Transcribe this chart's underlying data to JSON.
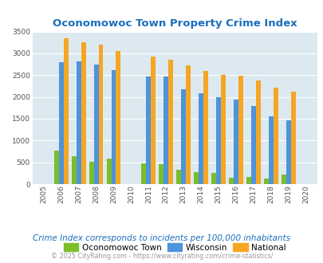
{
  "title": "Oconomowoc Town Property Crime Index",
  "years": [
    2005,
    2006,
    2007,
    2008,
    2009,
    2010,
    2011,
    2012,
    2013,
    2014,
    2015,
    2016,
    2017,
    2018,
    2019,
    2020
  ],
  "oconomowoc": [
    0,
    775,
    640,
    505,
    590,
    0,
    475,
    450,
    330,
    270,
    250,
    155,
    165,
    120,
    220,
    0
  ],
  "wisconsin": [
    0,
    2800,
    2820,
    2750,
    2610,
    0,
    2460,
    2475,
    2175,
    2090,
    1985,
    1940,
    1800,
    1555,
    1470,
    0
  ],
  "national": [
    0,
    3350,
    3255,
    3200,
    3045,
    0,
    2920,
    2860,
    2730,
    2600,
    2505,
    2480,
    2380,
    2210,
    2120,
    0
  ],
  "ylim": [
    0,
    3500
  ],
  "yticks": [
    0,
    500,
    1000,
    1500,
    2000,
    2500,
    3000,
    3500
  ],
  "color_oconomowoc": "#7cbd2a",
  "color_wisconsin": "#4d94db",
  "color_national": "#f5a623",
  "bg_color": "#dce9f0",
  "subtitle": "Crime Index corresponds to incidents per 100,000 inhabitants",
  "footer": "© 2025 CityRating.com - https://www.cityrating.com/crime-statistics/",
  "title_color": "#1a6ebd",
  "subtitle_color": "#1a6ebd",
  "footer_color": "#999999"
}
